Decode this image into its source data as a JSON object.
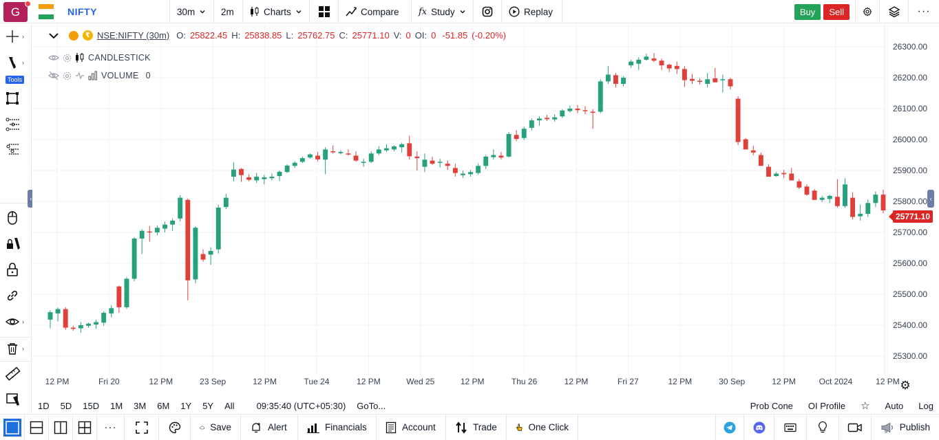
{
  "app": {
    "logo_letter": "G",
    "symbol": "NIFTY"
  },
  "toolbar": {
    "interval": "30m",
    "interval2": "2m",
    "charts": "Charts",
    "compare": "Compare",
    "study": "Study",
    "replay": "Replay",
    "buy": "Buy",
    "sell": "Sell"
  },
  "left_tools": {
    "tools_badge": "Tools"
  },
  "legend": {
    "symbol": "NSE:NIFTY (30m)",
    "o_label": "O:",
    "o": "25822.45",
    "h_label": "H:",
    "h": "25838.85",
    "l_label": "L:",
    "l": "25762.75",
    "c_label": "C:",
    "c": "25771.10",
    "v_label": "V:",
    "v": "0",
    "oi_label": "OI:",
    "oi": "0",
    "change": "-51.85",
    "change_pct": "(-0.20%)",
    "indicator1": "CANDLESTICK",
    "indicator2": "VOLUME",
    "indicator2_value": "0"
  },
  "last_price": "25771.10",
  "chart_data": {
    "type": "candlestick",
    "symbol": "NSE:NIFTY",
    "interval": "30m",
    "ylim": [
      25240,
      26360
    ],
    "y_ticks": [
      "26300.00",
      "26200.00",
      "26100.00",
      "26000.00",
      "25900.00",
      "25800.00",
      "25700.00",
      "25600.00",
      "25500.00",
      "25400.00",
      "25300.00"
    ],
    "x_ticks": [
      "12 PM",
      "Fri 20",
      "12 PM",
      "23 Sep",
      "12 PM",
      "Tue 24",
      "12 PM",
      "Wed 25",
      "12 PM",
      "Thu 26",
      "12 PM",
      "Fri 27",
      "12 PM",
      "30 Sep",
      "12 PM",
      "Oct 2024",
      "12 PM"
    ],
    "colors": {
      "up": "#26a17b",
      "down": "#e0403a"
    },
    "candles": [
      [
        25418,
        25448,
        25390,
        25442
      ],
      [
        25438,
        25457,
        25412,
        25452
      ],
      [
        25452,
        25458,
        25385,
        25392
      ],
      [
        25392,
        25398,
        25382,
        25388
      ],
      [
        25390,
        25410,
        25375,
        25400
      ],
      [
        25398,
        25408,
        25392,
        25405
      ],
      [
        25402,
        25418,
        25388,
        25410
      ],
      [
        25408,
        25445,
        25398,
        25440
      ],
      [
        25438,
        25465,
        25425,
        25455
      ],
      [
        25525,
        25528,
        25440,
        25458
      ],
      [
        25458,
        25555,
        25452,
        25550
      ],
      [
        25550,
        25685,
        25542,
        25680
      ],
      [
        25680,
        25710,
        25630,
        25705
      ],
      [
        25703,
        25720,
        25670,
        25702
      ],
      [
        25700,
        25722,
        25690,
        25715
      ],
      [
        25712,
        25735,
        25700,
        25725
      ],
      [
        25725,
        25745,
        25705,
        25738
      ],
      [
        25745,
        25820,
        25735,
        25812
      ],
      [
        25805,
        25810,
        25480,
        25545
      ],
      [
        25548,
        25720,
        25535,
        25715
      ],
      [
        25630,
        25645,
        25605,
        25612
      ],
      [
        25628,
        25652,
        25595,
        25640
      ],
      [
        25645,
        25790,
        25632,
        25780
      ],
      [
        25782,
        25825,
        25775,
        25812
      ],
      [
        25880,
        25927,
        25865,
        25903
      ],
      [
        25905,
        25908,
        25863,
        25885
      ],
      [
        25878,
        25888,
        25865,
        25870
      ],
      [
        25868,
        25892,
        25860,
        25880
      ],
      [
        25872,
        25885,
        25855,
        25878
      ],
      [
        25875,
        25890,
        25868,
        25880
      ],
      [
        25882,
        25900,
        25866,
        25896
      ],
      [
        25895,
        25920,
        25892,
        25916
      ],
      [
        25915,
        25930,
        25908,
        25925
      ],
      [
        25928,
        25945,
        25924,
        25940
      ],
      [
        25942,
        25955,
        25938,
        25952
      ],
      [
        25948,
        25960,
        25930,
        25936
      ],
      [
        25935,
        25975,
        25888,
        25968
      ],
      [
        25962,
        25982,
        25955,
        25960
      ],
      [
        25956,
        25965,
        25952,
        25960
      ],
      [
        25955,
        25968,
        25948,
        25953
      ],
      [
        25948,
        25962,
        25928,
        25932
      ],
      [
        25925,
        25938,
        25912,
        25928
      ],
      [
        25928,
        25962,
        25924,
        25955
      ],
      [
        25955,
        25978,
        25950,
        25968
      ],
      [
        25965,
        25985,
        25960,
        25972
      ],
      [
        25968,
        25982,
        25962,
        25978
      ],
      [
        25975,
        25990,
        25958,
        25985
      ],
      [
        25988,
        26012,
        25935,
        25946
      ],
      [
        25945,
        25962,
        25900,
        25940
      ],
      [
        25912,
        25955,
        25895,
        25935
      ],
      [
        25932,
        25945,
        25918,
        25922
      ],
      [
        25925,
        25938,
        25910,
        25928
      ],
      [
        25922,
        25932,
        25902,
        25915
      ],
      [
        25908,
        25922,
        25880,
        25892
      ],
      [
        25885,
        25900,
        25876,
        25890
      ],
      [
        25888,
        25902,
        25880,
        25895
      ],
      [
        25892,
        25922,
        25886,
        25915
      ],
      [
        25915,
        25950,
        25905,
        25945
      ],
      [
        25943,
        25968,
        25935,
        25950
      ],
      [
        25948,
        25960,
        25935,
        25942
      ],
      [
        25945,
        26025,
        25942,
        26018
      ],
      [
        26015,
        26030,
        25995,
        26002
      ],
      [
        26005,
        26042,
        25998,
        26035
      ],
      [
        26038,
        26068,
        26030,
        26062
      ],
      [
        26062,
        26075,
        26045,
        26068
      ],
      [
        26070,
        26080,
        26060,
        26066
      ],
      [
        26065,
        26082,
        26058,
        26072
      ],
      [
        26075,
        26098,
        26070,
        26094
      ],
      [
        26092,
        26110,
        26088,
        26100
      ],
      [
        26100,
        26112,
        26085,
        26095
      ],
      [
        26095,
        26108,
        26082,
        26092
      ],
      [
        26090,
        26098,
        26035,
        26088
      ],
      [
        26090,
        26195,
        26085,
        26188
      ],
      [
        26188,
        26238,
        26180,
        26210
      ],
      [
        26208,
        26215,
        26168,
        26180
      ],
      [
        26180,
        26205,
        26172,
        26200
      ],
      [
        26240,
        26258,
        26232,
        26252
      ],
      [
        26245,
        26266,
        26225,
        26258
      ],
      [
        26258,
        26278,
        26255,
        26268
      ],
      [
        26262,
        26280,
        26250,
        26255
      ],
      [
        26255,
        26262,
        26225,
        26240
      ],
      [
        26242,
        26245,
        26218,
        26230
      ],
      [
        26238,
        26252,
        26212,
        26228
      ],
      [
        26228,
        26238,
        26170,
        26192
      ],
      [
        26196,
        26212,
        26180,
        26190
      ],
      [
        26190,
        26198,
        26178,
        26188
      ],
      [
        26180,
        26215,
        26168,
        26195
      ],
      [
        26198,
        26232,
        26184,
        26185
      ],
      [
        26192,
        26210,
        26152,
        26195
      ],
      [
        26195,
        26200,
        26162,
        26172
      ],
      [
        26132,
        26140,
        25982,
        25992
      ],
      [
        26001,
        26005,
        25972,
        25968
      ],
      [
        25965,
        25980,
        25950,
        25958
      ],
      [
        25950,
        25958,
        25918,
        25915
      ],
      [
        25912,
        25920,
        25880,
        25880
      ],
      [
        25882,
        25895,
        25880,
        25890
      ],
      [
        25892,
        25902,
        25876,
        25888
      ],
      [
        25890,
        25908,
        25870,
        25868
      ],
      [
        25865,
        25872,
        25840,
        25845
      ],
      [
        25848,
        25855,
        25818,
        25822
      ],
      [
        25835,
        25840,
        25805,
        25805
      ],
      [
        25805,
        25818,
        25798,
        25812
      ],
      [
        25808,
        25822,
        25795,
        25818
      ],
      [
        25815,
        25872,
        25780,
        25785
      ],
      [
        25785,
        25875,
        25780,
        25855
      ],
      [
        25812,
        25830,
        25742,
        25750
      ],
      [
        25752,
        25790,
        25738,
        25760
      ],
      [
        25760,
        25806,
        25750,
        25795
      ],
      [
        25795,
        25832,
        25782,
        25822
      ],
      [
        25822,
        25838,
        25762,
        25771
      ]
    ]
  },
  "range_bar": {
    "ranges": [
      "1D",
      "5D",
      "15D",
      "1M",
      "3M",
      "6M",
      "1Y",
      "5Y",
      "All"
    ],
    "clock": "09:35:40 (UTC+05:30)",
    "goto": "GoTo...",
    "prob_cone": "Prob Cone",
    "oi_profile": "OI Profile",
    "auto": "Auto",
    "log": "Log"
  },
  "bottom_bar": {
    "save": "Save",
    "alert": "Alert",
    "financials": "Financials",
    "account": "Account",
    "trade": "Trade",
    "one_click": "One Click",
    "publish": "Publish"
  }
}
